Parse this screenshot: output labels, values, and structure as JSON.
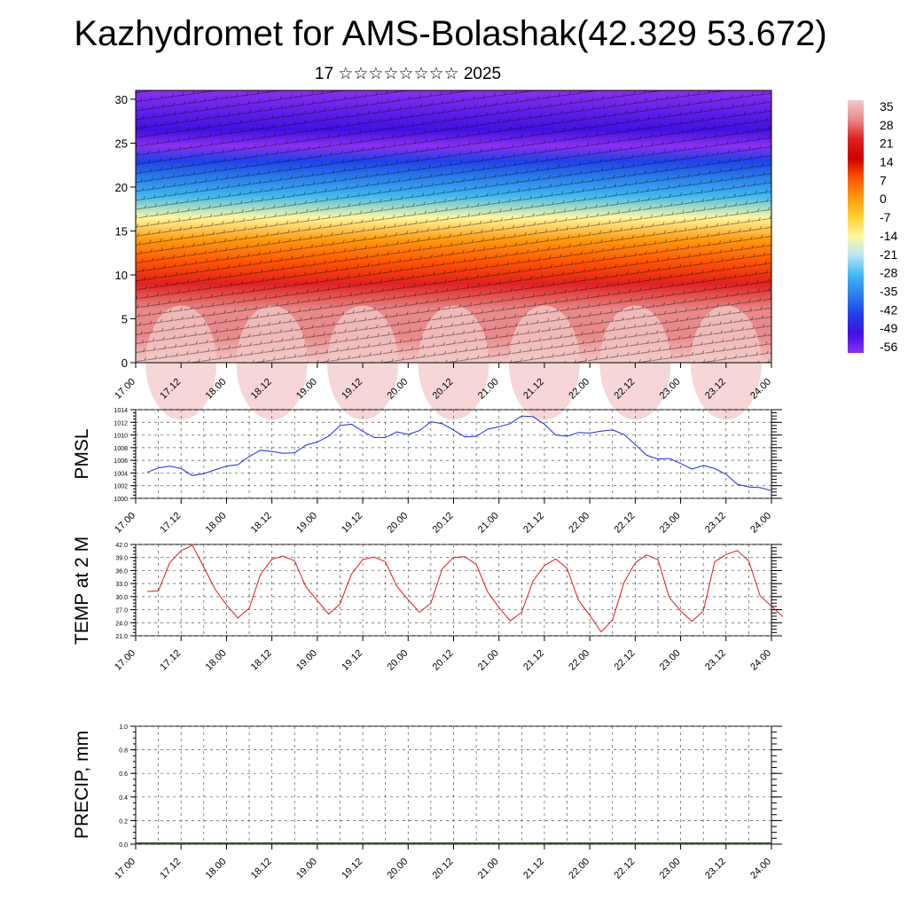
{
  "header": {
    "title": "Kazhydromet for AMS-Bolashak(42.329 53.672)",
    "subtitle": "17 ☆☆☆☆☆☆☆☆ 2025"
  },
  "time_ticks": [
    "17.00",
    "17.12",
    "18.00",
    "18.12",
    "19.00",
    "19.12",
    "20.00",
    "20.12",
    "21.00",
    "21.12",
    "22.00",
    "22.12",
    "23.00",
    "23.12",
    "24.00"
  ],
  "chart_data": [
    {
      "type": "heatmap",
      "title": "",
      "xlabel": "",
      "ylabel": "",
      "x_range_hours": [
        0,
        168
      ],
      "ylim": [
        0,
        31
      ],
      "y_ticks": [
        0,
        5,
        10,
        15,
        20,
        25,
        30
      ],
      "colorbar_labels": [
        "35",
        "28",
        "21",
        "14",
        "7",
        "0",
        "-7",
        "-14",
        "-21",
        "-28",
        "-35",
        "-42",
        "-49",
        "-56"
      ],
      "colorbar_colors": [
        "#f3c8c8",
        "#e88a8a",
        "#e02020",
        "#d00000",
        "#ff5500",
        "#ff9a10",
        "#ffd030",
        "#fff8a0",
        "#b8e4f8",
        "#40b8f0",
        "#2a80e8",
        "#2040e8",
        "#4010e0",
        "#8a30f0"
      ],
      "profile": [
        {
          "level": 0,
          "value": 32
        },
        {
          "level": 3,
          "value": 30
        },
        {
          "level": 6,
          "value": 27
        },
        {
          "level": 9,
          "value": 21
        },
        {
          "level": 11.5,
          "value": 10
        },
        {
          "level": 14,
          "value": 0
        },
        {
          "level": 16.5,
          "value": -12
        },
        {
          "level": 19,
          "value": -26
        },
        {
          "level": 21,
          "value": -34
        },
        {
          "level": 23,
          "value": -42
        },
        {
          "level": 24.7,
          "value": -56
        },
        {
          "level": 26.5,
          "value": -50
        },
        {
          "level": 31,
          "value": -56
        }
      ]
    },
    {
      "type": "line",
      "ylabel": "PMSL",
      "ylim": [
        1000,
        1014
      ],
      "y_ticks": [
        "1000",
        "1002",
        "1004",
        "1006",
        "1008",
        "1010",
        "1012",
        "1014"
      ],
      "color": "#1a2ee0",
      "series": [
        {
          "x_hours": [
            0,
            3,
            6,
            9,
            12,
            15,
            18,
            21,
            24,
            27,
            30,
            33,
            36,
            39,
            42,
            45,
            48,
            51,
            54,
            57,
            60,
            63,
            66,
            69,
            72,
            75,
            78,
            81,
            84,
            87,
            90,
            93,
            96,
            99,
            102,
            105,
            108,
            111,
            114,
            117,
            120,
            123,
            126,
            129,
            132,
            135,
            138,
            141,
            144,
            147,
            150,
            153,
            156,
            159,
            162,
            165
          ],
          "values": [
            1004.1,
            1004.8,
            1005.1,
            1004.7,
            1003.6,
            1003.9,
            1004.5,
            1005.1,
            1005.3,
            1006.6,
            1007.6,
            1007.4,
            1007.1,
            1007.2,
            1008.4,
            1008.9,
            1009.8,
            1011.5,
            1011.7,
            1010.6,
            1009.6,
            1009.6,
            1010.5,
            1010.1,
            1010.7,
            1012.1,
            1011.8,
            1010.8,
            1009.7,
            1009.8,
            1010.9,
            1011.3,
            1011.8,
            1013.0,
            1012.9,
            1011.7,
            1010.0,
            1009.8,
            1010.4,
            1010.3,
            1010.6,
            1010.8,
            1010.1,
            1008.5,
            1006.8,
            1006.2,
            1006.3,
            1005.5,
            1004.6,
            1005.2,
            1004.7,
            1003.8,
            1002.2,
            1001.8,
            1001.7,
            1001.2
          ]
        }
      ]
    },
    {
      "type": "line",
      "ylabel": "TEMP at 2 M",
      "ylim": [
        21,
        42
      ],
      "y_ticks": [
        "21.0",
        "24.0",
        "27.0",
        "30.0",
        "33.0",
        "36.0",
        "39.0",
        "42.0"
      ],
      "color": "#e01818",
      "series": [
        {
          "x_hours": [
            0,
            3,
            6,
            9,
            12,
            15,
            18,
            21,
            24,
            27,
            30,
            33,
            36,
            39,
            42,
            45,
            48,
            51,
            54,
            57,
            60,
            63,
            66,
            69,
            72,
            75,
            78,
            81,
            84,
            87,
            90,
            93,
            96,
            99,
            102,
            105,
            108,
            111,
            114,
            117,
            120,
            123,
            126,
            129,
            132,
            135,
            138,
            141,
            144,
            147,
            150,
            153,
            156,
            159,
            162,
            165,
            168
          ],
          "values": [
            31.2,
            31.3,
            37.8,
            40.6,
            41.8,
            36.8,
            31.7,
            28.1,
            25.1,
            27.3,
            35.1,
            38.6,
            39.3,
            38.2,
            32.2,
            29.1,
            26.0,
            28.3,
            35.2,
            38.5,
            39.1,
            38.0,
            32.4,
            29.3,
            26.4,
            28.5,
            36.4,
            39.0,
            39.2,
            37.4,
            31.1,
            27.5,
            24.4,
            26.4,
            33.6,
            37.1,
            38.7,
            36.5,
            29.2,
            25.7,
            21.9,
            24.6,
            33.2,
            37.8,
            39.6,
            38.5,
            29.8,
            26.7,
            24.3,
            26.7,
            38.0,
            39.7,
            40.6,
            38.2,
            30.2,
            27.8,
            25.4
          ]
        }
      ]
    },
    {
      "type": "bar",
      "ylabel": "PRECIP, mm",
      "ylim": [
        0,
        1
      ],
      "y_ticks": [
        "0.0",
        "0.2",
        "0.4",
        "0.6",
        "0.8",
        "1.0"
      ],
      "values": []
    }
  ]
}
